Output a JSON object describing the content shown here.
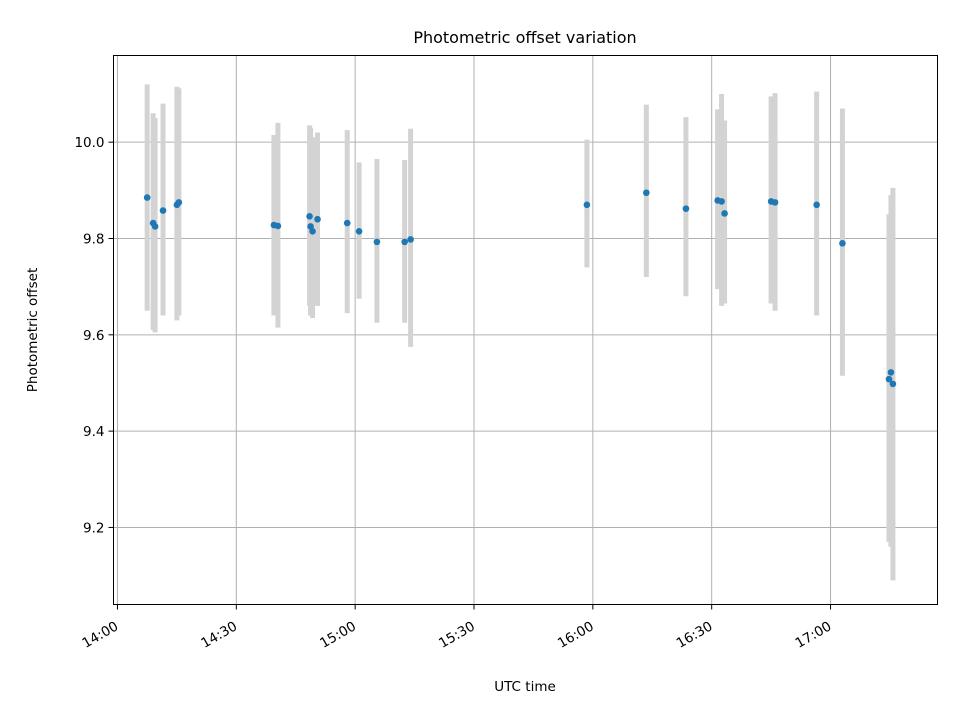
{
  "chart_data": {
    "type": "scatter",
    "title": "Photometric offset variation",
    "xlabel": "UTC time",
    "ylabel": "Photometric offset",
    "x_ticks": [
      "14:00",
      "14:30",
      "15:00",
      "15:30",
      "16:00",
      "16:30",
      "17:00"
    ],
    "y_ticks": [
      9.2,
      9.4,
      9.6,
      9.8,
      10.0
    ],
    "xlim": [
      "13:59",
      "17:27"
    ],
    "ylim": [
      9.04,
      10.18
    ],
    "grid": true,
    "error_bars": true,
    "series": [
      {
        "points": [
          {
            "t": "14:07:30",
            "y": 9.885,
            "lo": 9.65,
            "hi": 10.12
          },
          {
            "t": "14:09:00",
            "y": 9.832,
            "lo": 9.61,
            "hi": 10.06
          },
          {
            "t": "14:09:30",
            "y": 9.825,
            "lo": 9.605,
            "hi": 10.05
          },
          {
            "t": "14:11:30",
            "y": 9.858,
            "lo": 9.64,
            "hi": 10.08
          },
          {
            "t": "14:15:00",
            "y": 9.87,
            "lo": 9.63,
            "hi": 10.115
          },
          {
            "t": "14:15:30",
            "y": 9.875,
            "lo": 9.64,
            "hi": 10.112
          },
          {
            "t": "14:39:30",
            "y": 9.828,
            "lo": 9.64,
            "hi": 10.015
          },
          {
            "t": "14:40:30",
            "y": 9.826,
            "lo": 9.615,
            "hi": 10.04
          },
          {
            "t": "14:48:30",
            "y": 9.846,
            "lo": 9.66,
            "hi": 10.035
          },
          {
            "t": "14:48:45",
            "y": 9.825,
            "lo": 9.64,
            "hi": 10.03
          },
          {
            "t": "14:49:15",
            "y": 9.815,
            "lo": 9.635,
            "hi": 10.01
          },
          {
            "t": "14:50:30",
            "y": 9.84,
            "lo": 9.66,
            "hi": 10.02
          },
          {
            "t": "14:58:00",
            "y": 9.832,
            "lo": 9.645,
            "hi": 10.025
          },
          {
            "t": "15:01:00",
            "y": 9.815,
            "lo": 9.675,
            "hi": 9.958
          },
          {
            "t": "15:05:30",
            "y": 9.793,
            "lo": 9.625,
            "hi": 9.965
          },
          {
            "t": "15:12:30",
            "y": 9.793,
            "lo": 9.625,
            "hi": 9.963
          },
          {
            "t": "15:14:00",
            "y": 9.798,
            "lo": 9.575,
            "hi": 10.028
          },
          {
            "t": "15:58:30",
            "y": 9.87,
            "lo": 9.74,
            "hi": 10.005
          },
          {
            "t": "16:13:30",
            "y": 9.895,
            "lo": 9.72,
            "hi": 10.078
          },
          {
            "t": "16:23:30",
            "y": 9.862,
            "lo": 9.68,
            "hi": 10.052
          },
          {
            "t": "16:31:30",
            "y": 9.879,
            "lo": 9.695,
            "hi": 10.068
          },
          {
            "t": "16:32:30",
            "y": 9.877,
            "lo": 9.66,
            "hi": 10.1
          },
          {
            "t": "16:33:15",
            "y": 9.852,
            "lo": 9.665,
            "hi": 10.045
          },
          {
            "t": "16:45:00",
            "y": 9.877,
            "lo": 9.665,
            "hi": 10.095
          },
          {
            "t": "16:46:00",
            "y": 9.875,
            "lo": 9.65,
            "hi": 10.102
          },
          {
            "t": "16:56:30",
            "y": 9.87,
            "lo": 9.64,
            "hi": 10.105
          },
          {
            "t": "17:03:00",
            "y": 9.79,
            "lo": 9.515,
            "hi": 10.07
          },
          {
            "t": "17:14:45",
            "y": 9.508,
            "lo": 9.17,
            "hi": 9.85
          },
          {
            "t": "17:15:15",
            "y": 9.522,
            "lo": 9.16,
            "hi": 9.89
          },
          {
            "t": "17:15:45",
            "y": 9.498,
            "lo": 9.09,
            "hi": 9.905
          }
        ]
      }
    ]
  }
}
